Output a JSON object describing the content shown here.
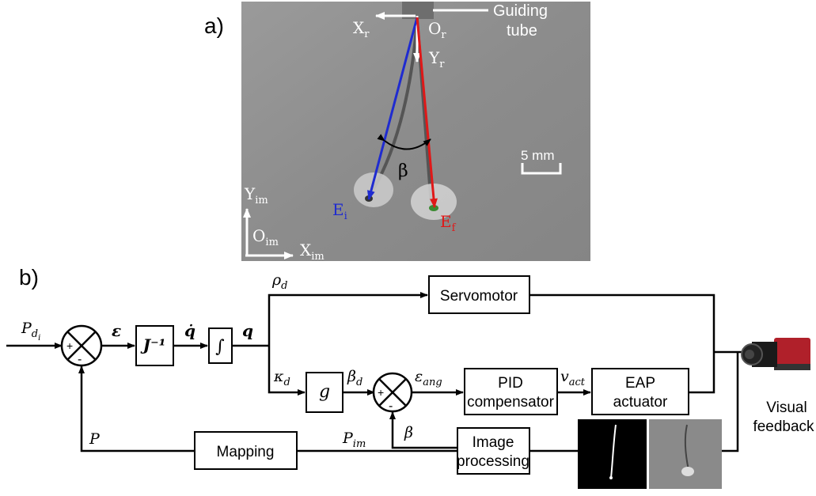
{
  "panel_a": {
    "label": "a)",
    "guiding_tube": [
      "Guiding",
      "tube"
    ],
    "robot_frame": {
      "x_axis": "X",
      "x_sub": "r",
      "y_axis": "Y",
      "y_sub": "r",
      "origin": "O",
      "origin_sub": "r"
    },
    "image_frame": {
      "x_axis": "X",
      "x_sub": "im",
      "y_axis": "Y",
      "y_sub": "im",
      "origin": "O",
      "origin_sub": "im"
    },
    "angle_label": "β",
    "initial_end": {
      "main": "E",
      "sub": "i"
    },
    "final_end": {
      "main": "E",
      "sub": "f"
    },
    "scale_bar": "5 mm",
    "colors": {
      "initial": "#1f2bd0",
      "final": "#e01818",
      "photo_bg": "#8e8e8e"
    }
  },
  "panel_b": {
    "label": "b)",
    "blocks": {
      "jacobian": "J⁻¹",
      "integrator": "∫",
      "servomotor": "Servomotor",
      "g": "g",
      "pid": [
        "PID",
        "compensator"
      ],
      "eap": [
        "EAP",
        "actuator"
      ],
      "mapping": "Mapping",
      "image_processing": [
        "Image",
        "processing"
      ]
    },
    "signals": {
      "input": {
        "main": "P",
        "sub": "d",
        "subsub": "i"
      },
      "epsilon": "ε",
      "q_dot": "q̇",
      "q": "q",
      "rho_d": {
        "main": "ρ",
        "sub": "d"
      },
      "kappa_d": {
        "main": "κ",
        "sub": "d"
      },
      "beta_d": {
        "main": "β",
        "sub": "d"
      },
      "eps_ang": {
        "main": "ε",
        "sub": "ang"
      },
      "v_act": {
        "main": "v",
        "sub": "act"
      },
      "beta": "β",
      "p_im": {
        "main": "P",
        "sub": "im"
      },
      "p": "P"
    },
    "summing_signs": {
      "plus": "+",
      "minus": "-"
    },
    "visual_feedback": [
      "Visual",
      "feedback"
    ]
  }
}
